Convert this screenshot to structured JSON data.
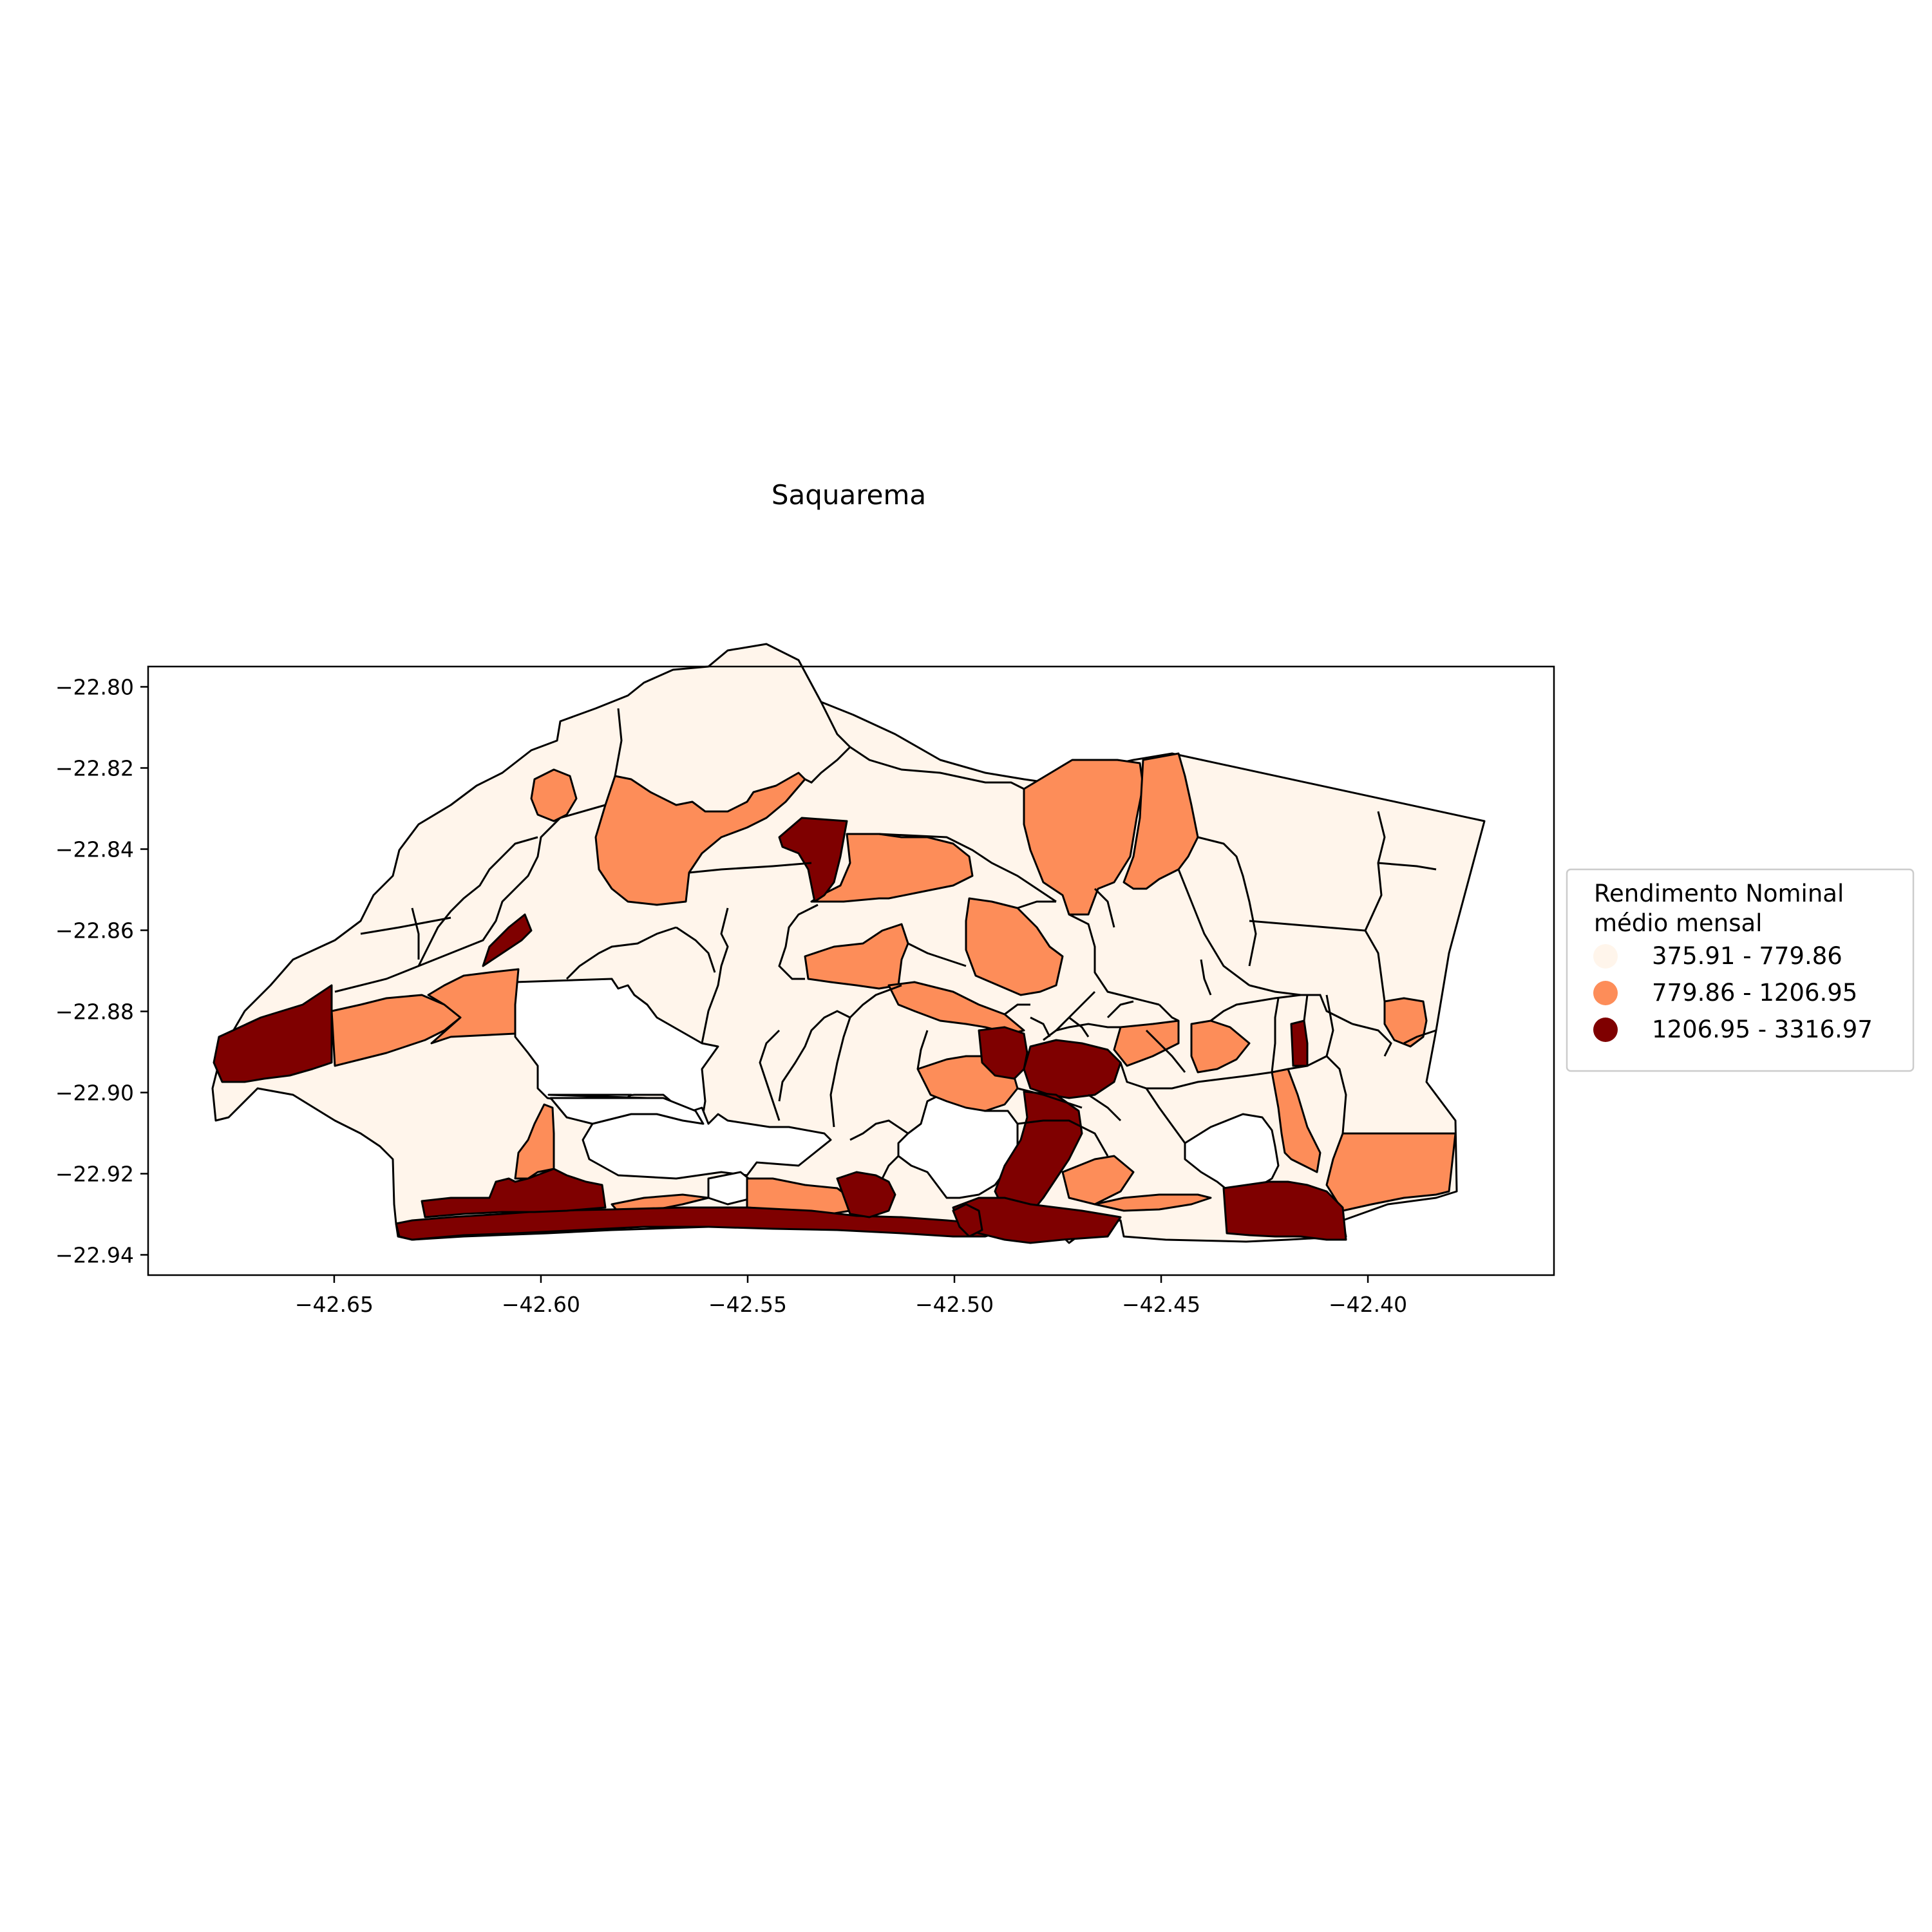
{
  "title": "Saquarema",
  "map": {
    "x_ticks": [
      {
        "value": -42.65,
        "label": "−42.65"
      },
      {
        "value": -42.6,
        "label": "−42.60"
      },
      {
        "value": -42.55,
        "label": "−42.55"
      },
      {
        "value": -42.5,
        "label": "−42.50"
      },
      {
        "value": -42.45,
        "label": "−42.45"
      },
      {
        "value": -42.4,
        "label": "−42.40"
      }
    ],
    "y_ticks": [
      {
        "value": -22.8,
        "label": "−22.80"
      },
      {
        "value": -22.82,
        "label": "−22.82"
      },
      {
        "value": -22.84,
        "label": "−22.84"
      },
      {
        "value": -22.86,
        "label": "−22.86"
      },
      {
        "value": -22.88,
        "label": "−22.88"
      },
      {
        "value": -22.9,
        "label": "−22.90"
      },
      {
        "value": -22.92,
        "label": "−22.92"
      },
      {
        "value": -22.94,
        "label": "−22.94"
      }
    ],
    "x_range": [
      -42.695,
      -42.355
    ],
    "y_range": [
      -22.945,
      -22.795
    ],
    "colors": {
      "low": "#fff5eb",
      "mid": "#fd8d59",
      "high": "#7f0000",
      "nodata": "#ffffff"
    }
  },
  "legend": {
    "title_line1": "Rendimento Nominal",
    "title_line2": "médio mensal",
    "items": [
      {
        "label": "375.91 - 779.86",
        "color": "#fff5eb"
      },
      {
        "label": "779.86 - 1206.95",
        "color": "#fd8d59"
      },
      {
        "label": "1206.95 - 3316.97",
        "color": "#7f0000"
      }
    ]
  }
}
